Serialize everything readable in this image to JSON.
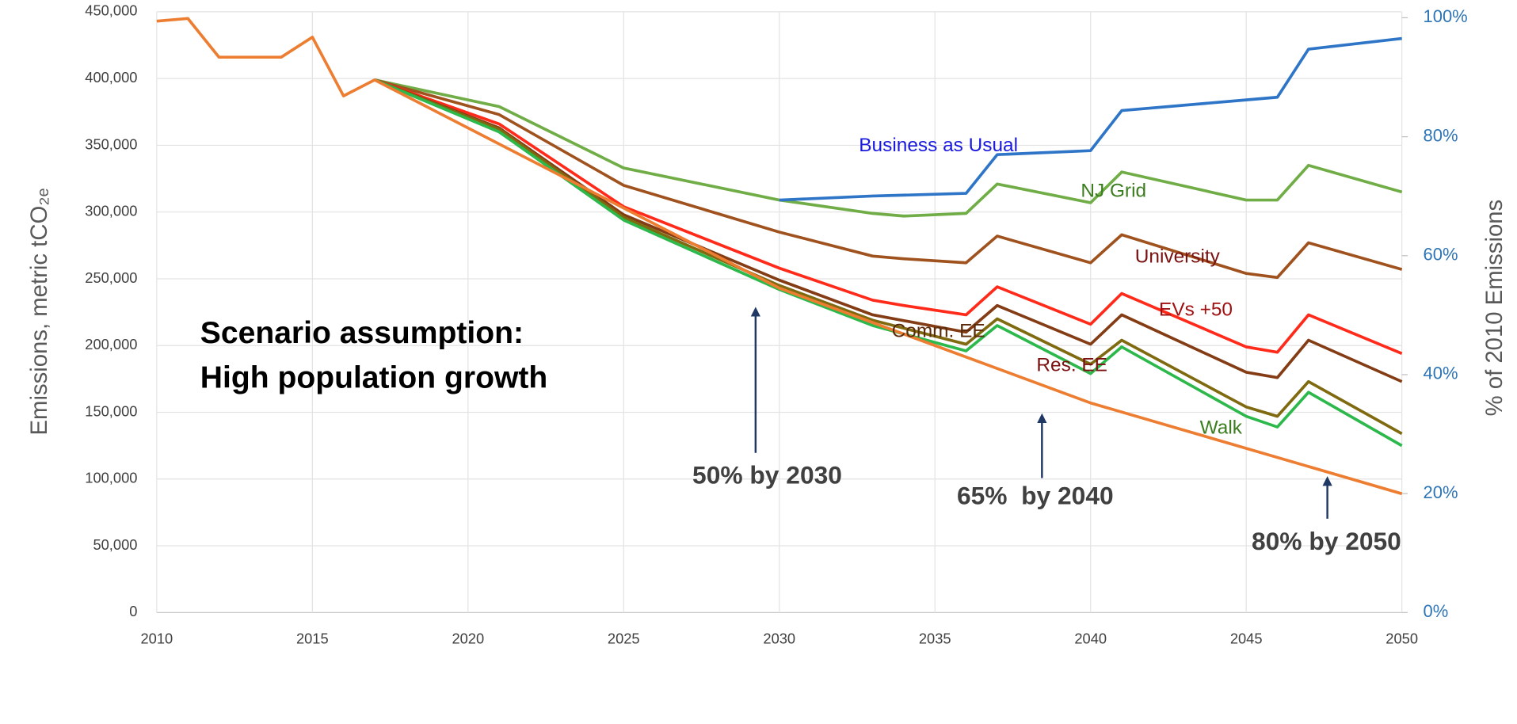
{
  "chart_data": {
    "type": "line",
    "y_label": "Emissions, metric tCO₂ₑ",
    "y2_label": "% of 2010 Emissions",
    "annotations": [
      "Scenario assumption:",
      "High population growth",
      "50% by 2030",
      "65%  by 2040",
      "80% by 2050"
    ],
    "xlim": [
      2010,
      2050
    ],
    "xticks": [
      2010,
      2015,
      2020,
      2025,
      2030,
      2035,
      2040,
      2045,
      2050
    ],
    "ylim": [
      0,
      450000
    ],
    "yticks": [
      0,
      {
        "value": 50000,
        "label": "50,000"
      },
      {
        "value": 100000,
        "label": "100,000"
      },
      {
        "value": 150000,
        "label": "150,000"
      },
      {
        "value": 200000,
        "label": "200,000"
      },
      {
        "value": 250000,
        "label": "250,000"
      },
      {
        "value": 300000,
        "label": "300,000"
      },
      {
        "value": 350000,
        "label": "350,000"
      },
      {
        "value": 400000,
        "label": "400,000"
      },
      {
        "value": 450000,
        "label": "450,000"
      }
    ],
    "y2lim": [
      0,
      101
    ],
    "y2ticks": [
      {
        "value": 0,
        "label": "0%"
      },
      {
        "value": 20,
        "label": "20%"
      },
      {
        "value": 40,
        "label": "40%"
      },
      {
        "value": 60,
        "label": "60%"
      },
      {
        "value": 80,
        "label": "80%"
      },
      {
        "value": 100,
        "label": "100%"
      }
    ],
    "grid": true,
    "series": [
      {
        "name": "NJ Grid",
        "color": "#70ad47",
        "x": [
          2017,
          2021,
          2025,
          2030,
          2033,
          2034,
          2036,
          2037,
          2040,
          2041,
          2045,
          2046,
          2047,
          2050
        ],
        "values": [
          399000,
          379000,
          333000,
          309000,
          299000,
          297000,
          299000,
          321000,
          307000,
          330000,
          309000,
          309000,
          335000,
          315000
        ]
      },
      {
        "name": "Business as Usual",
        "color": "#2e75c8",
        "x": [
          2030,
          2033,
          2036,
          2037,
          2040,
          2041,
          2045,
          2046,
          2047,
          2050
        ],
        "values": [
          309000,
          312000,
          314000,
          343000,
          346000,
          376000,
          384000,
          386000,
          422000,
          430000
        ]
      },
      {
        "name": "University",
        "color": "#a0521e",
        "x": [
          2017,
          2021,
          2025,
          2030,
          2033,
          2034,
          2036,
          2037,
          2040,
          2041,
          2045,
          2046,
          2047,
          2050
        ],
        "values": [
          399000,
          373000,
          320000,
          285000,
          267000,
          265000,
          262000,
          282000,
          262000,
          283000,
          254000,
          251000,
          277000,
          257000
        ]
      },
      {
        "name": "EVs +50",
        "color": "#ff2a1a",
        "x": [
          2017,
          2021,
          2025,
          2030,
          2033,
          2034,
          2036,
          2037,
          2040,
          2041,
          2045,
          2046,
          2047,
          2050
        ],
        "values": [
          399000,
          366000,
          304000,
          258000,
          234000,
          230000,
          223000,
          244000,
          216000,
          239000,
          199000,
          195000,
          223000,
          194000
        ]
      },
      {
        "name": "Comm. EE",
        "color": "#843c15",
        "x": [
          2017,
          2021,
          2025,
          2030,
          2033,
          2036,
          2037,
          2040,
          2041,
          2045,
          2046,
          2047,
          2050
        ],
        "values": [
          399000,
          363000,
          298000,
          249000,
          223000,
          210000,
          230000,
          201000,
          223000,
          180000,
          176000,
          204000,
          173000
        ]
      },
      {
        "name": "Res. EE",
        "color": "#7f6a10",
        "x": [
          2017,
          2021,
          2025,
          2030,
          2033,
          2036,
          2037,
          2040,
          2041,
          2045,
          2046,
          2047,
          2050
        ],
        "values": [
          399000,
          362000,
          296000,
          245000,
          219000,
          201000,
          220000,
          186000,
          204000,
          154000,
          147000,
          173000,
          134000
        ]
      },
      {
        "name": "Walk",
        "color": "#2db84b",
        "x": [
          2017,
          2021,
          2025,
          2030,
          2033,
          2036,
          2037,
          2040,
          2041,
          2045,
          2046,
          2047,
          2050
        ],
        "values": [
          399000,
          360000,
          294000,
          242000,
          215000,
          196000,
          215000,
          179000,
          199000,
          147000,
          139000,
          165000,
          125000
        ]
      },
      {
        "color": "#ed7d31",
        "x": [
          2010,
          2011,
          2012,
          2013,
          2014,
          2015,
          2016,
          2017,
          2030,
          2040,
          2050
        ],
        "values": [
          443000,
          445000,
          416000,
          416000,
          416000,
          431000,
          387000,
          399000,
          243000,
          157000,
          89000
        ]
      }
    ]
  }
}
